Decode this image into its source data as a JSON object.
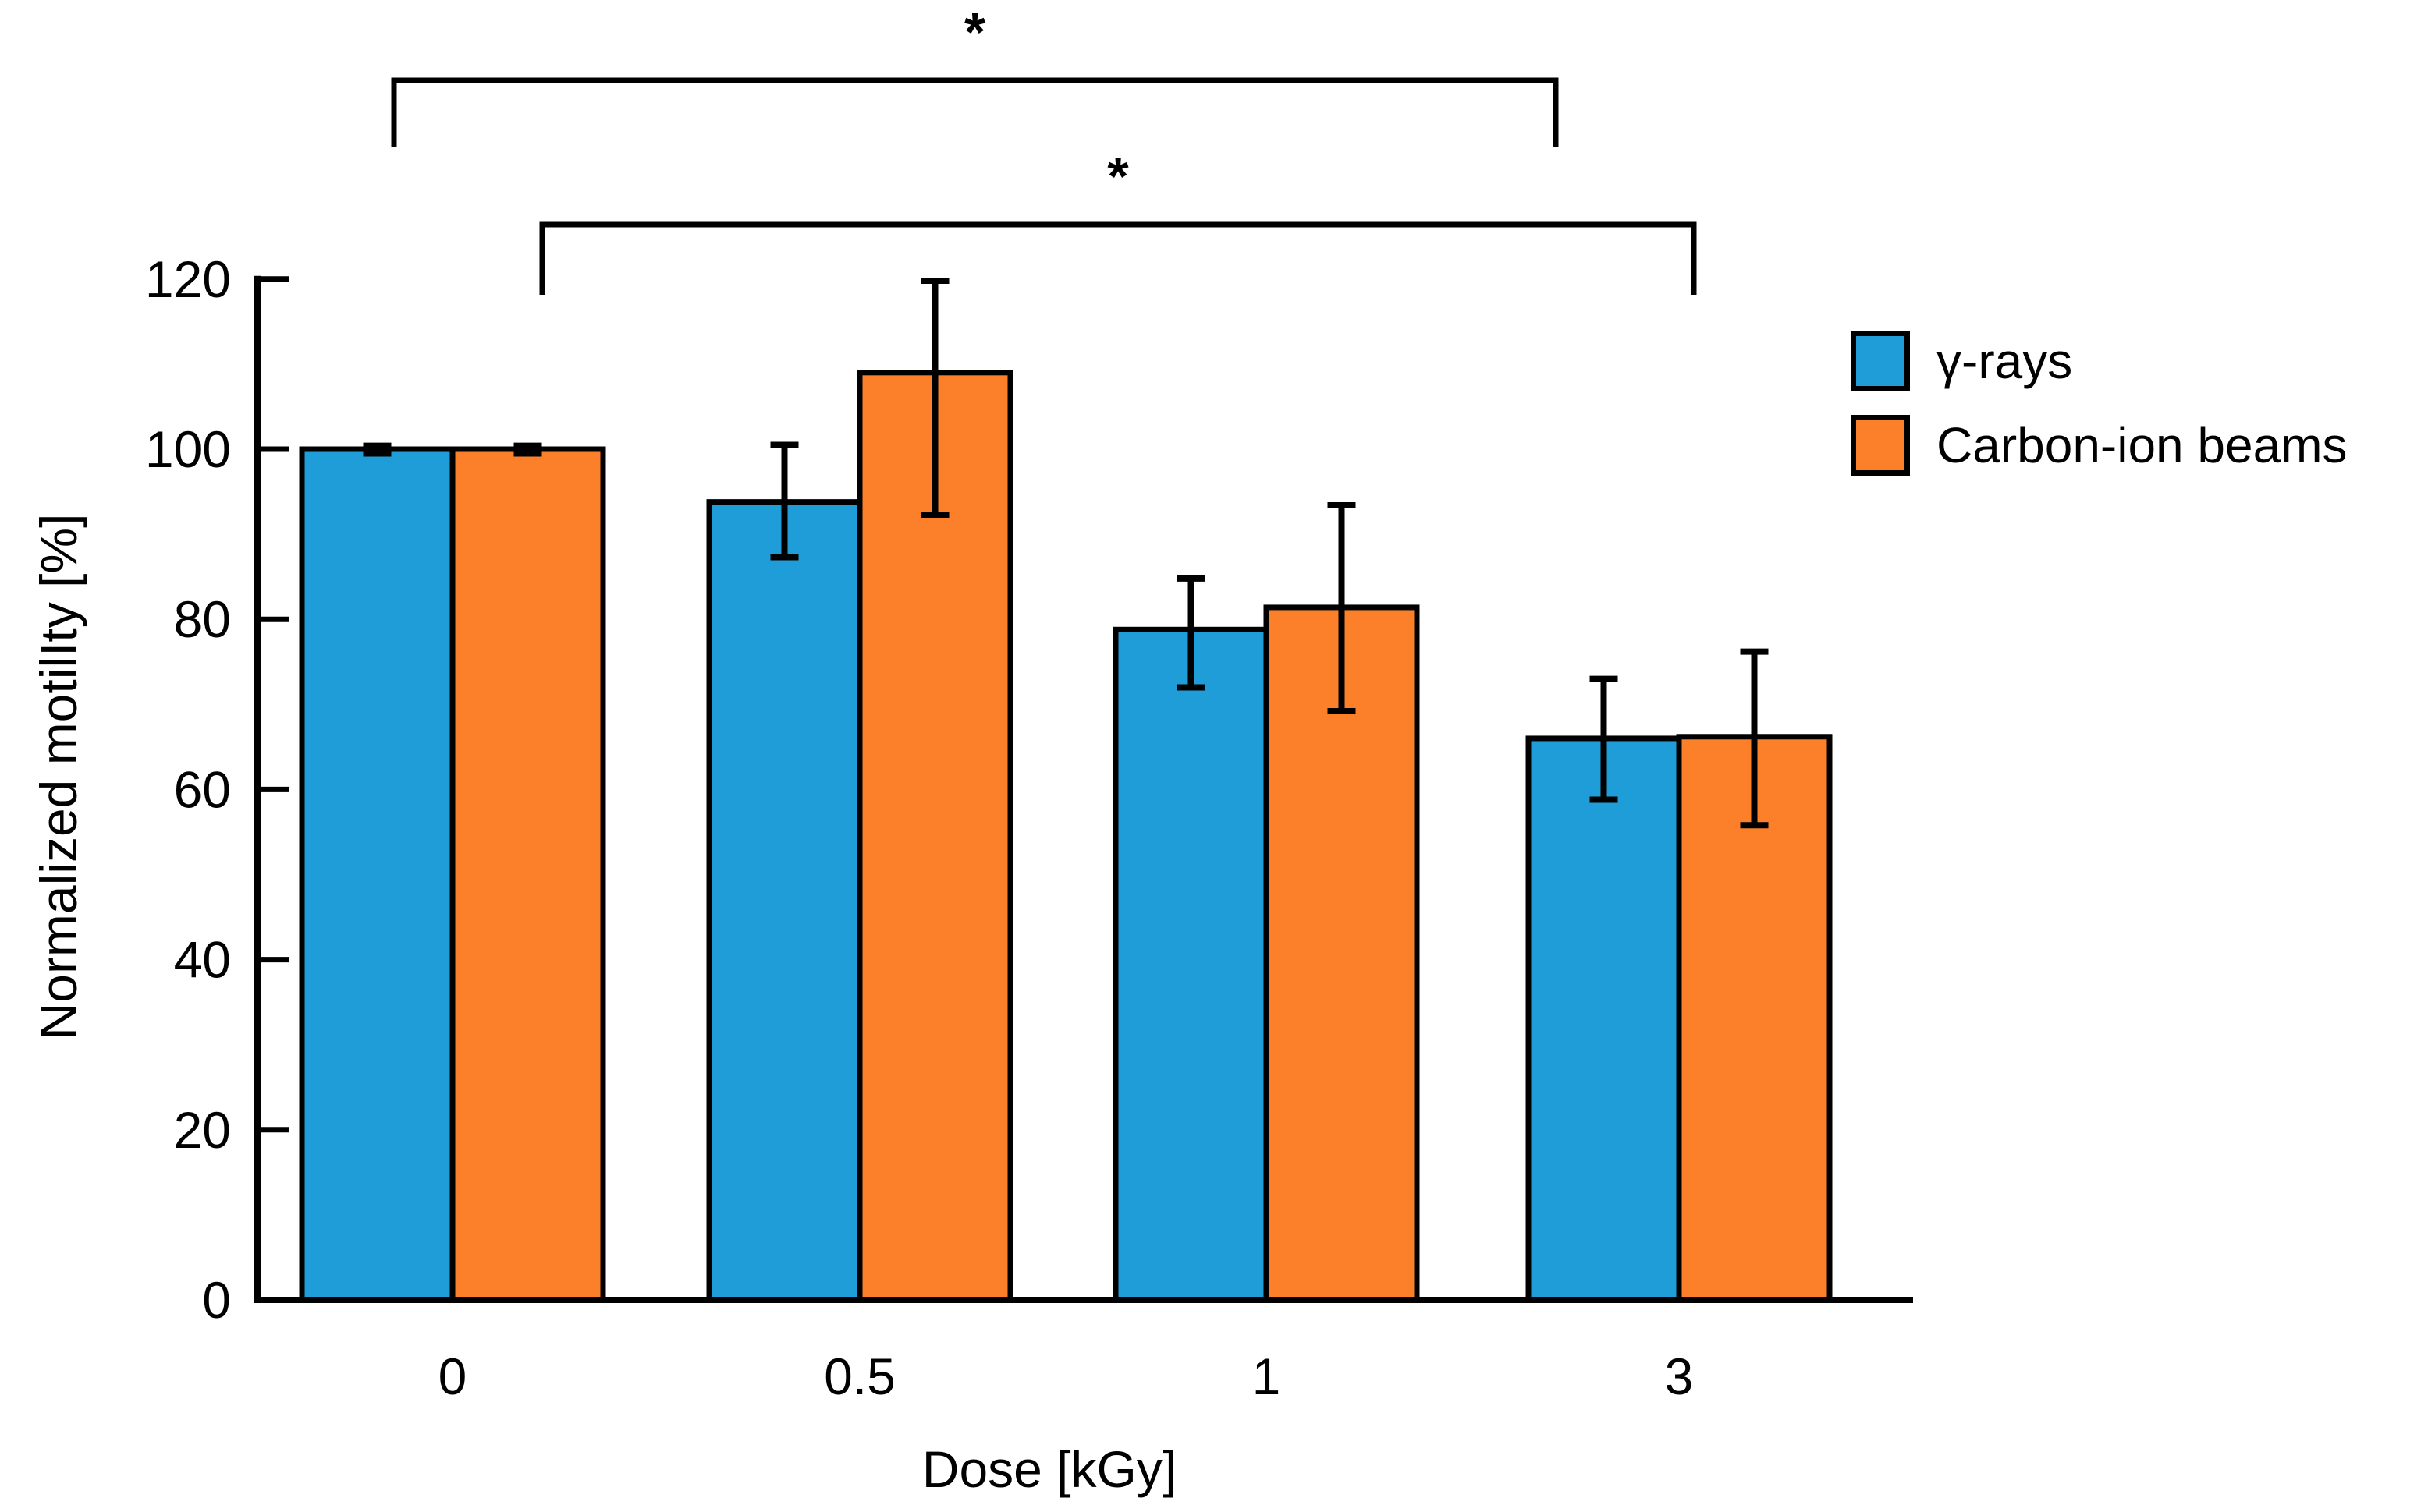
{
  "figure": {
    "background": "#ffffff"
  },
  "chart_data": {
    "type": "bar",
    "title": "",
    "xlabel": "Dose [kGy]",
    "ylabel": "Normalized motilIty [%]",
    "categories": [
      "0",
      "0.5",
      "1",
      "3"
    ],
    "ylim": [
      0,
      120
    ],
    "yticks": [
      0,
      20,
      40,
      60,
      80,
      100,
      120
    ],
    "grid": false,
    "legend_position": "right-of-plot",
    "bar_edge_color": "#000000",
    "error_bar_color": "#000000",
    "series": [
      {
        "name": "γ-rays",
        "color": "#1F9DD9",
        "values": [
          100,
          93.8,
          78.8,
          66.0
        ],
        "error_low": [
          99.5,
          87.3,
          72.0,
          58.8
        ],
        "error_high": [
          100.4,
          100.5,
          84.8,
          73.0
        ]
      },
      {
        "name": "Carbon-ion beams",
        "color": "#FB8029",
        "values": [
          100,
          109.0,
          81.4,
          66.2
        ],
        "error_low": [
          99.5,
          92.3,
          69.2,
          55.8
        ],
        "error_high": [
          100.4,
          119.8,
          93.4,
          76.2
        ]
      }
    ],
    "significance": [
      {
        "label": "*",
        "series": "γ-rays",
        "from": "0",
        "to": "3"
      },
      {
        "label": "*",
        "series": "Carbon-ion beams",
        "from": "0",
        "to": "3"
      }
    ]
  }
}
